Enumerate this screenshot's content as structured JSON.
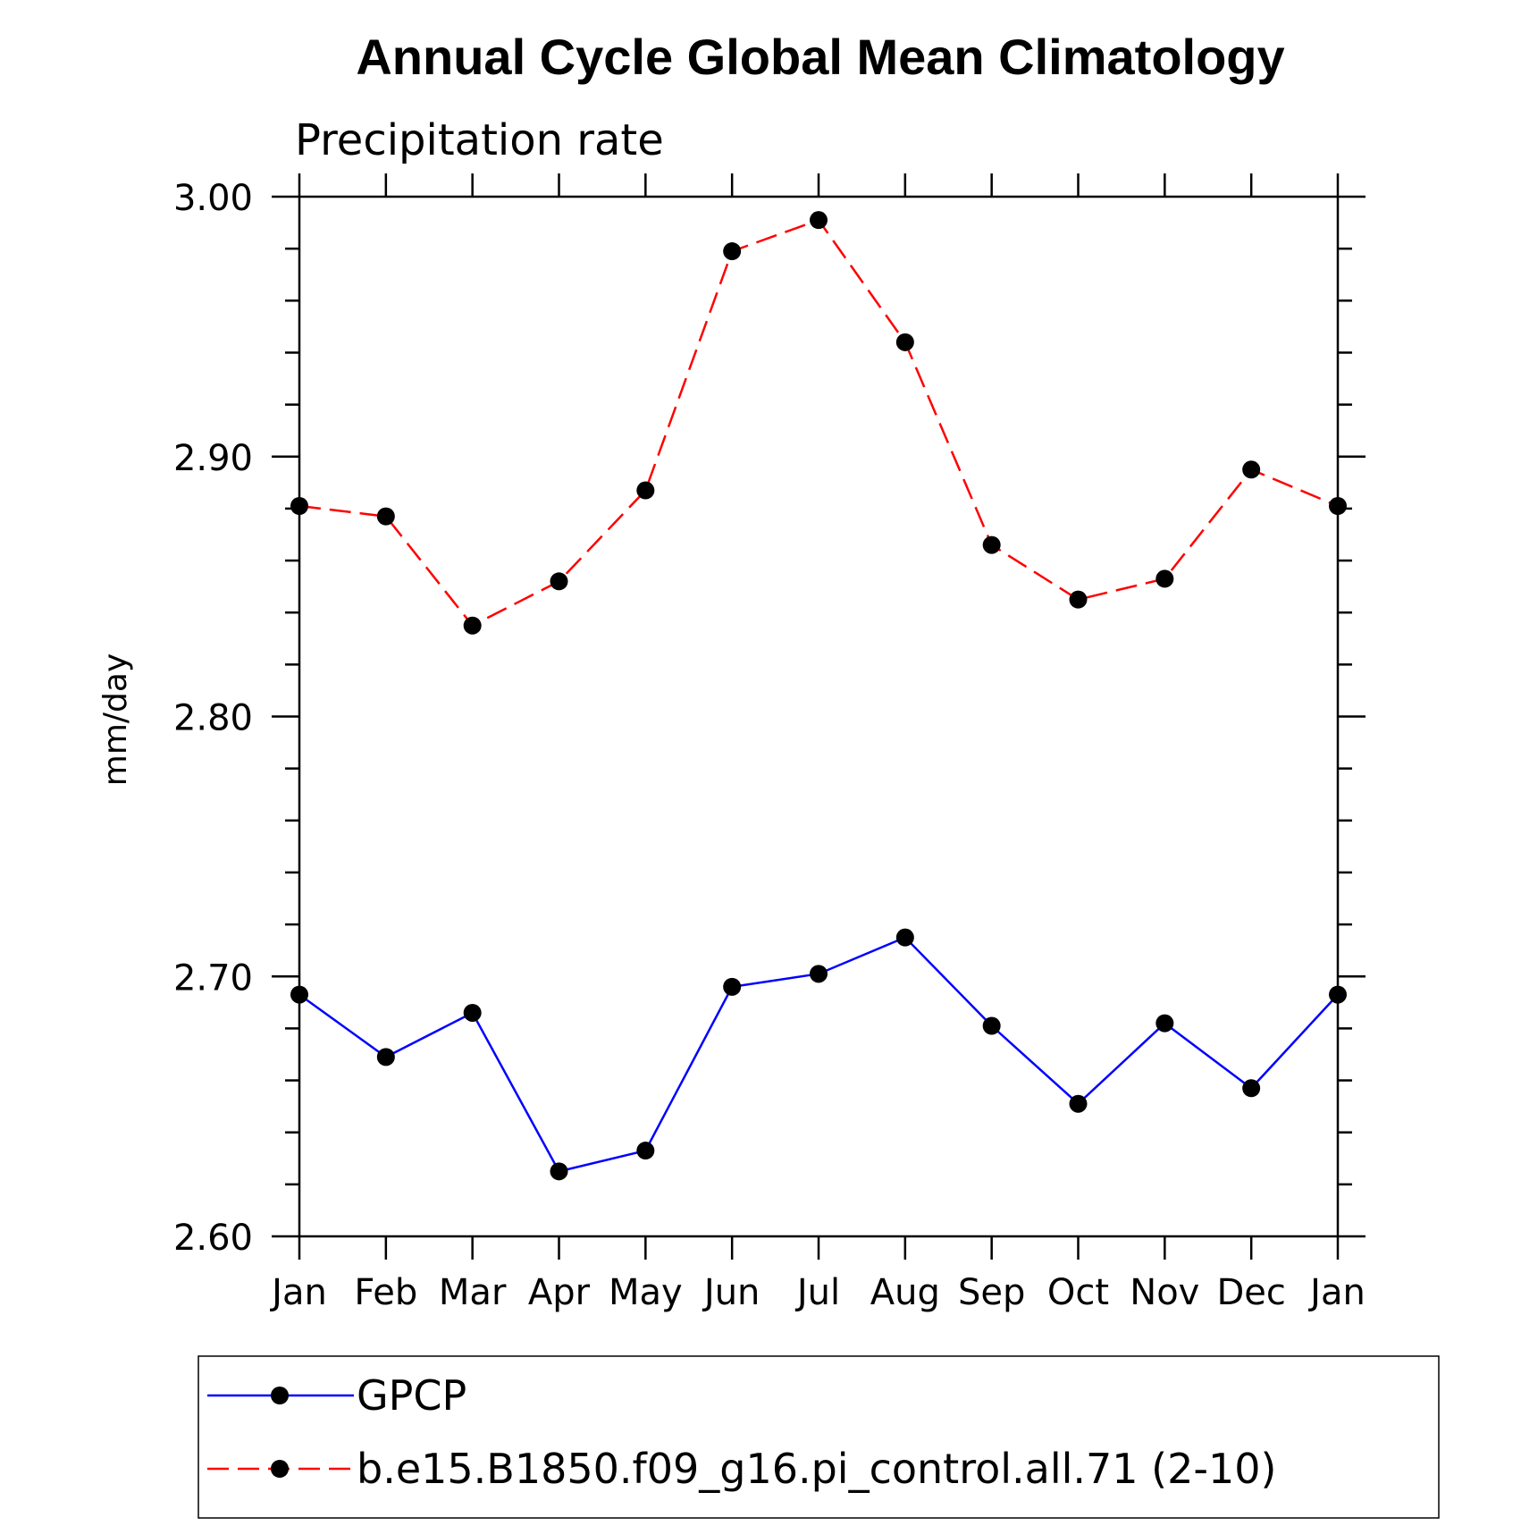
{
  "chart_data": {
    "type": "line",
    "title": "Annual Cycle Global Mean Climatology",
    "subtitle": "Precipitation rate",
    "xlabel": "",
    "ylabel": "mm/day",
    "ylim": [
      2.6,
      3.0
    ],
    "yticks": [
      "2.60",
      "2.70",
      "2.80",
      "2.90",
      "3.00"
    ],
    "categories": [
      "Jan",
      "Feb",
      "Mar",
      "Apr",
      "May",
      "Jun",
      "Jul",
      "Aug",
      "Sep",
      "Oct",
      "Nov",
      "Dec",
      "Jan"
    ],
    "grid": false,
    "legend_position": "bottom",
    "series": [
      {
        "name": "GPCP",
        "color": "#0000ff",
        "dash": "solid",
        "marker": "filled-circle",
        "values": [
          2.693,
          2.669,
          2.686,
          2.625,
          2.633,
          2.696,
          2.701,
          2.715,
          2.681,
          2.651,
          2.682,
          2.657,
          2.693
        ]
      },
      {
        "name": "b.e15.B1850.f09_g16.pi_control.all.71 (2-10)",
        "color": "#ff0000",
        "dash": "dashed",
        "marker": "filled-circle",
        "values": [
          2.881,
          2.877,
          2.835,
          2.852,
          2.887,
          2.979,
          2.991,
          2.944,
          2.866,
          2.845,
          2.853,
          2.895,
          2.881
        ]
      }
    ]
  }
}
